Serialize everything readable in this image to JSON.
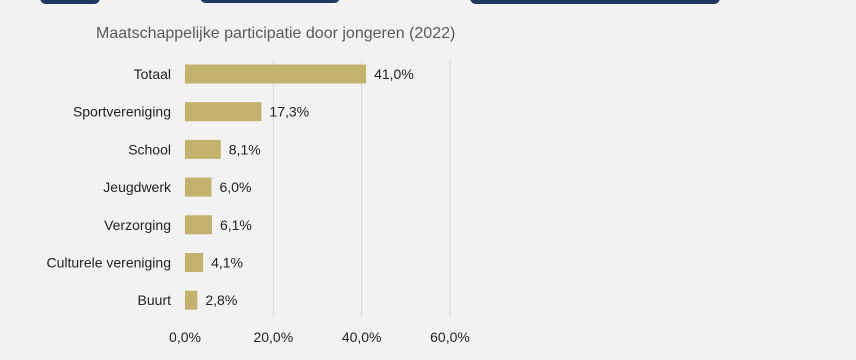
{
  "colors": {
    "bar": "#c3b26d",
    "background": "#f2f2f2",
    "heading": "#1f3864",
    "grid": "#d9d9d9"
  },
  "chart_data": {
    "type": "bar",
    "orientation": "horizontal",
    "title": "Maatschappelijke participatie door jongeren (2022)",
    "categories": [
      "Totaal",
      "Sportvereniging",
      "School",
      "Jeugdwerk",
      "Verzorging",
      "Culturele vereniging",
      "Buurt"
    ],
    "values": [
      41.0,
      17.3,
      8.1,
      6.0,
      6.1,
      4.1,
      2.8
    ],
    "value_labels": [
      "41,0%",
      "17,3%",
      "8,1%",
      "6,0%",
      "6,1%",
      "4,1%",
      "2,8%"
    ],
    "xlim": [
      0,
      60
    ],
    "x_ticks": [
      0,
      20,
      40,
      60
    ],
    "x_tick_labels": [
      "0,0%",
      "20,0%",
      "40,0%",
      "60,0%"
    ],
    "grid": true,
    "legend": "none"
  }
}
